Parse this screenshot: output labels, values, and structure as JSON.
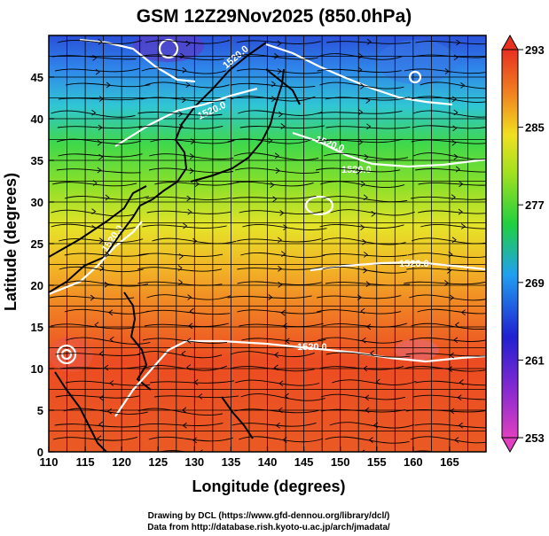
{
  "title": "GSM 12Z29Nov2025 (850.0hPa)",
  "xaxis": {
    "label": "Longitude (degrees)",
    "ticks": [
      "110",
      "115",
      "120",
      "125",
      "130",
      "135",
      "140",
      "145",
      "150",
      "155",
      "160",
      "165"
    ],
    "range": [
      110,
      170
    ]
  },
  "yaxis": {
    "label": "Latitude (degrees)",
    "ticks": [
      "0",
      "5",
      "10",
      "15",
      "20",
      "25",
      "30",
      "35",
      "40",
      "45"
    ],
    "range": [
      0,
      50
    ]
  },
  "colorbar": {
    "ticks": [
      "293",
      "285",
      "277",
      "269",
      "261",
      "253"
    ],
    "range": [
      253,
      293
    ],
    "colors": [
      "#e040c0",
      "#2020d0",
      "#20a0f0",
      "#20d020",
      "#f0f020",
      "#f08020",
      "#e83020"
    ]
  },
  "contour_labels": [
    "1520.0",
    "1520.0",
    "1520.0",
    "1520.0",
    "1520.0",
    "1520.0",
    "1520.0"
  ],
  "credits": {
    "line1": "Drawing by DCL (https://www.gfd-dennou.org/library/dcl/)",
    "line2": "Data from http://database.rish.kyoto-u.ac.jp/arch/jmadata/"
  }
}
